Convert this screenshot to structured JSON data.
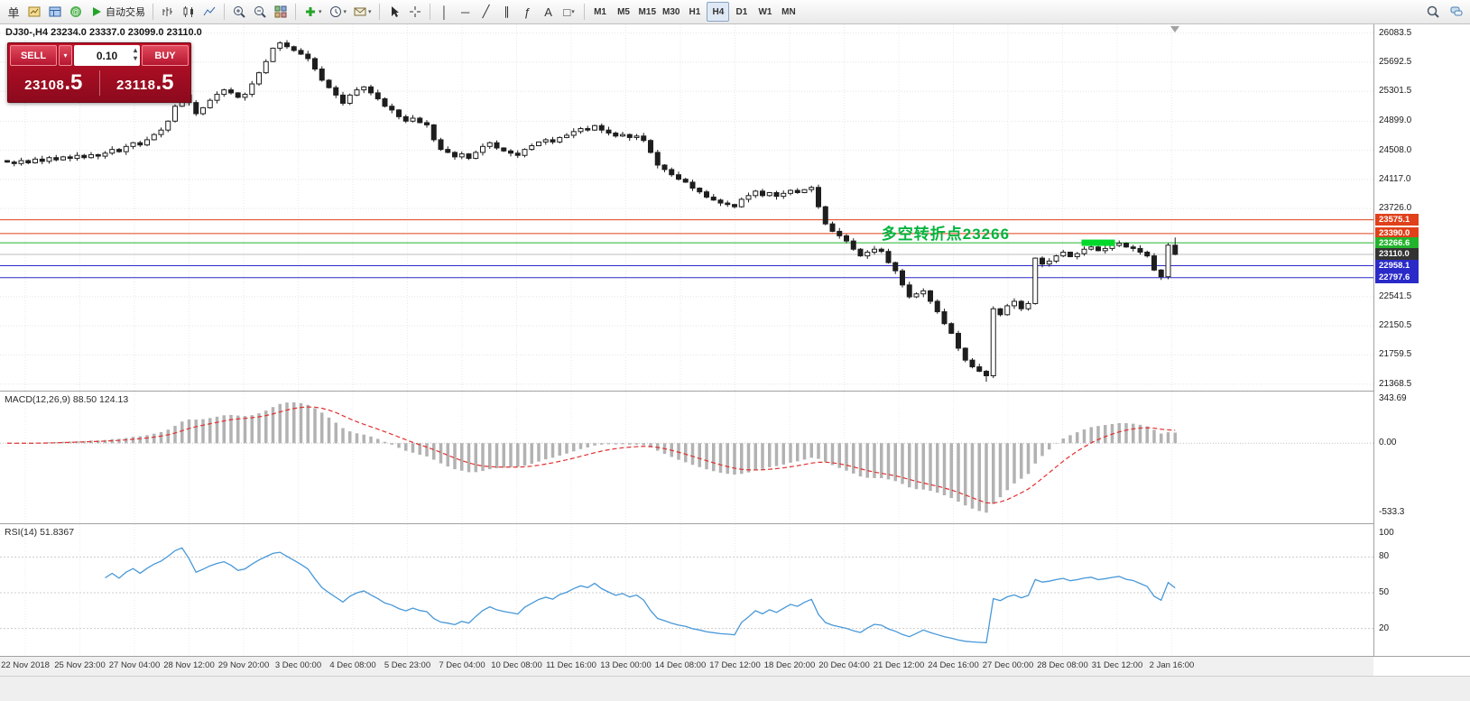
{
  "toolbar": {
    "groups": [
      {
        "items": [
          {
            "name": "new-order-button",
            "glyph": "单"
          },
          {
            "name": "chart-window-icon",
            "icon": "chart-window"
          },
          {
            "name": "profiles-icon",
            "icon": "profiles"
          },
          {
            "name": "community-icon",
            "icon": "community"
          },
          {
            "name": "autotrade-button",
            "icon": "play",
            "label": "自动交易"
          }
        ]
      },
      {
        "items": [
          {
            "name": "bar-chart-icon",
            "icon": "bars"
          },
          {
            "name": "candlestick-icon",
            "icon": "candles"
          },
          {
            "name": "line-chart-icon",
            "icon": "line"
          }
        ]
      },
      {
        "items": [
          {
            "name": "zoom-in-icon",
            "icon": "zoom-in"
          },
          {
            "name": "zoom-out-icon",
            "icon": "zoom-out"
          },
          {
            "name": "tile-windows-icon",
            "icon": "tile"
          }
        ]
      },
      {
        "items": [
          {
            "name": "new-indicator-icon",
            "icon": "indicator",
            "dropdown": true
          },
          {
            "name": "periods-icon",
            "icon": "clock",
            "dropdown": true
          },
          {
            "name": "templates-icon",
            "icon": "mail",
            "dropdown": true
          }
        ]
      },
      {
        "items": [
          {
            "name": "cursor-icon",
            "icon": "cursor"
          },
          {
            "name": "crosshair-icon",
            "icon": "crosshair"
          }
        ]
      },
      {
        "items": [
          {
            "name": "vertical-line-tool",
            "glyph": "│"
          },
          {
            "name": "horizontal-line-tool",
            "glyph": "─"
          },
          {
            "name": "trendline-tool",
            "glyph": "╱"
          },
          {
            "name": "channel-tool",
            "glyph": "∥"
          },
          {
            "name": "fibonacci-tool",
            "glyph": "ƒ"
          },
          {
            "name": "text-tool",
            "glyph": "A"
          },
          {
            "name": "shapes-tool",
            "glyph": "□",
            "dropdown": true
          }
        ]
      }
    ],
    "timeframes": {
      "labels": [
        "M1",
        "M5",
        "M15",
        "M30",
        "H1",
        "H4",
        "D1",
        "W1",
        "MN"
      ],
      "active": "H4"
    },
    "right_items": [
      {
        "name": "search-icon",
        "icon": "search"
      },
      {
        "name": "chat-icon",
        "icon": "chat"
      }
    ]
  },
  "trade_panel": {
    "sell_label": "SELL",
    "buy_label": "BUY",
    "volume": "0.10",
    "sell_price_main": "23108",
    "sell_price_frac": ".5",
    "buy_price_main": "23118",
    "buy_price_frac": ".5"
  },
  "chart": {
    "symbol_info": "DJ30-,H4  23234.0 23337.0 23099.0 23110.0",
    "annotation": {
      "text": "多空转折点23266",
      "color": "#00b43c",
      "price": 23266.6,
      "bar": 125
    },
    "marker": {
      "price": 23266.6,
      "from_bar": 154,
      "to_bar": 158,
      "color": "#00d82c"
    },
    "levels": [
      {
        "label": "23575.1",
        "price": 23575.1,
        "color": "#e0401a"
      },
      {
        "label": "23390.0",
        "price": 23390.0,
        "color": "#e0401a"
      },
      {
        "label": "23266.6",
        "price": 23266.6,
        "color": "#22b42c"
      },
      {
        "label": "23110.0",
        "price": 23110.0,
        "color": "#333333",
        "current": true
      },
      {
        "label": "22958.1",
        "price": 22958.1,
        "color": "#2a2ac8"
      },
      {
        "label": "22797.6",
        "price": 22797.6,
        "color": "#2a2ac8"
      }
    ],
    "price_axis": {
      "max": 26200,
      "min": 21280,
      "labels": [
        "26083.5",
        "25692.5",
        "25301.5",
        "24899.0",
        "24508.0",
        "24117.0",
        "23726.0",
        "22541.5",
        "22150.5",
        "21759.5",
        "21368.5"
      ]
    }
  },
  "chart_data": {
    "type": "candlestick",
    "symbol": "DJ30-",
    "timeframe": "H4",
    "last_bar": {
      "open": 23234.0,
      "high": 23337.0,
      "low": 23099.0,
      "close": 23110.0
    },
    "low_extreme": 21400,
    "closes": [
      24350,
      24330,
      24370,
      24340,
      24390,
      24360,
      24410,
      24380,
      24420,
      24400,
      24440,
      24410,
      24450,
      24430,
      24470,
      24520,
      24490,
      24560,
      24610,
      24580,
      24650,
      24720,
      24780,
      24900,
      25100,
      25250,
      25150,
      25000,
      25080,
      25180,
      25260,
      25320,
      25280,
      25220,
      25260,
      25400,
      25550,
      25700,
      25880,
      25950,
      25900,
      25850,
      25800,
      25740,
      25600,
      25450,
      25350,
      25250,
      25140,
      25250,
      25320,
      25360,
      25280,
      25200,
      25100,
      25050,
      24960,
      24900,
      24940,
      24880,
      24850,
      24650,
      24520,
      24480,
      24420,
      24460,
      24400,
      24480,
      24560,
      24610,
      24540,
      24500,
      24470,
      24440,
      24520,
      24570,
      24620,
      24650,
      24620,
      24680,
      24710,
      24760,
      24800,
      24780,
      24840,
      24780,
      24740,
      24700,
      24720,
      24680,
      24700,
      24640,
      24480,
      24310,
      24250,
      24180,
      24120,
      24080,
      24000,
      23950,
      23880,
      23840,
      23800,
      23780,
      23750,
      23850,
      23900,
      23960,
      23900,
      23940,
      23890,
      23930,
      23970,
      23940,
      23980,
      24010,
      23750,
      23520,
      23420,
      23360,
      23290,
      23180,
      23090,
      23140,
      23180,
      23150,
      23000,
      22890,
      22700,
      22540,
      22580,
      22620,
      22480,
      22340,
      22180,
      22050,
      21850,
      21690,
      21600,
      21540,
      21480,
      22380,
      22300,
      22420,
      22480,
      22380,
      22450,
      23060,
      22980,
      23020,
      23090,
      23140,
      23080,
      23120,
      23180,
      23210,
      23160,
      23190,
      23230,
      23260,
      23210,
      23190,
      23140,
      23090,
      22900,
      22810,
      23234,
      23110
    ]
  },
  "macd": {
    "label": "MACD(12,26,9) 88.50 124.13",
    "params": [
      12,
      26,
      9
    ],
    "axis": [
      {
        "label": "343.69",
        "value": 343.69
      },
      {
        "label": "0.00",
        "value": 0
      },
      {
        "label": "-533.3",
        "value": -533.3
      }
    ],
    "range": {
      "max": 400,
      "min": -620
    }
  },
  "rsi": {
    "label": "RSI(14) 51.8367",
    "params": [
      14
    ],
    "axis": [
      {
        "label": "100",
        "value": 100
      },
      {
        "label": "80",
        "value": 80
      },
      {
        "label": "50",
        "value": 50
      },
      {
        "label": "20",
        "value": 20
      }
    ],
    "levels": [
      80,
      50,
      20
    ]
  },
  "time_axis": {
    "labels": [
      "22 Nov 2018",
      "25 Nov 23:00",
      "27 Nov 04:00",
      "28 Nov 12:00",
      "29 Nov 20:00",
      "3 Dec 00:00",
      "4 Dec 08:00",
      "5 Dec 23:00",
      "7 Dec 04:00",
      "10 Dec 08:00",
      "11 Dec 16:00",
      "13 Dec 00:00",
      "14 Dec 08:00",
      "17 Dec 12:00",
      "18 Dec 20:00",
      "20 Dec 04:00",
      "21 Dec 12:00",
      "24 Dec 16:00",
      "27 Dec 00:00",
      "28 Dec 08:00",
      "31 Dec 12:00",
      "2 Jan 16:00"
    ]
  }
}
